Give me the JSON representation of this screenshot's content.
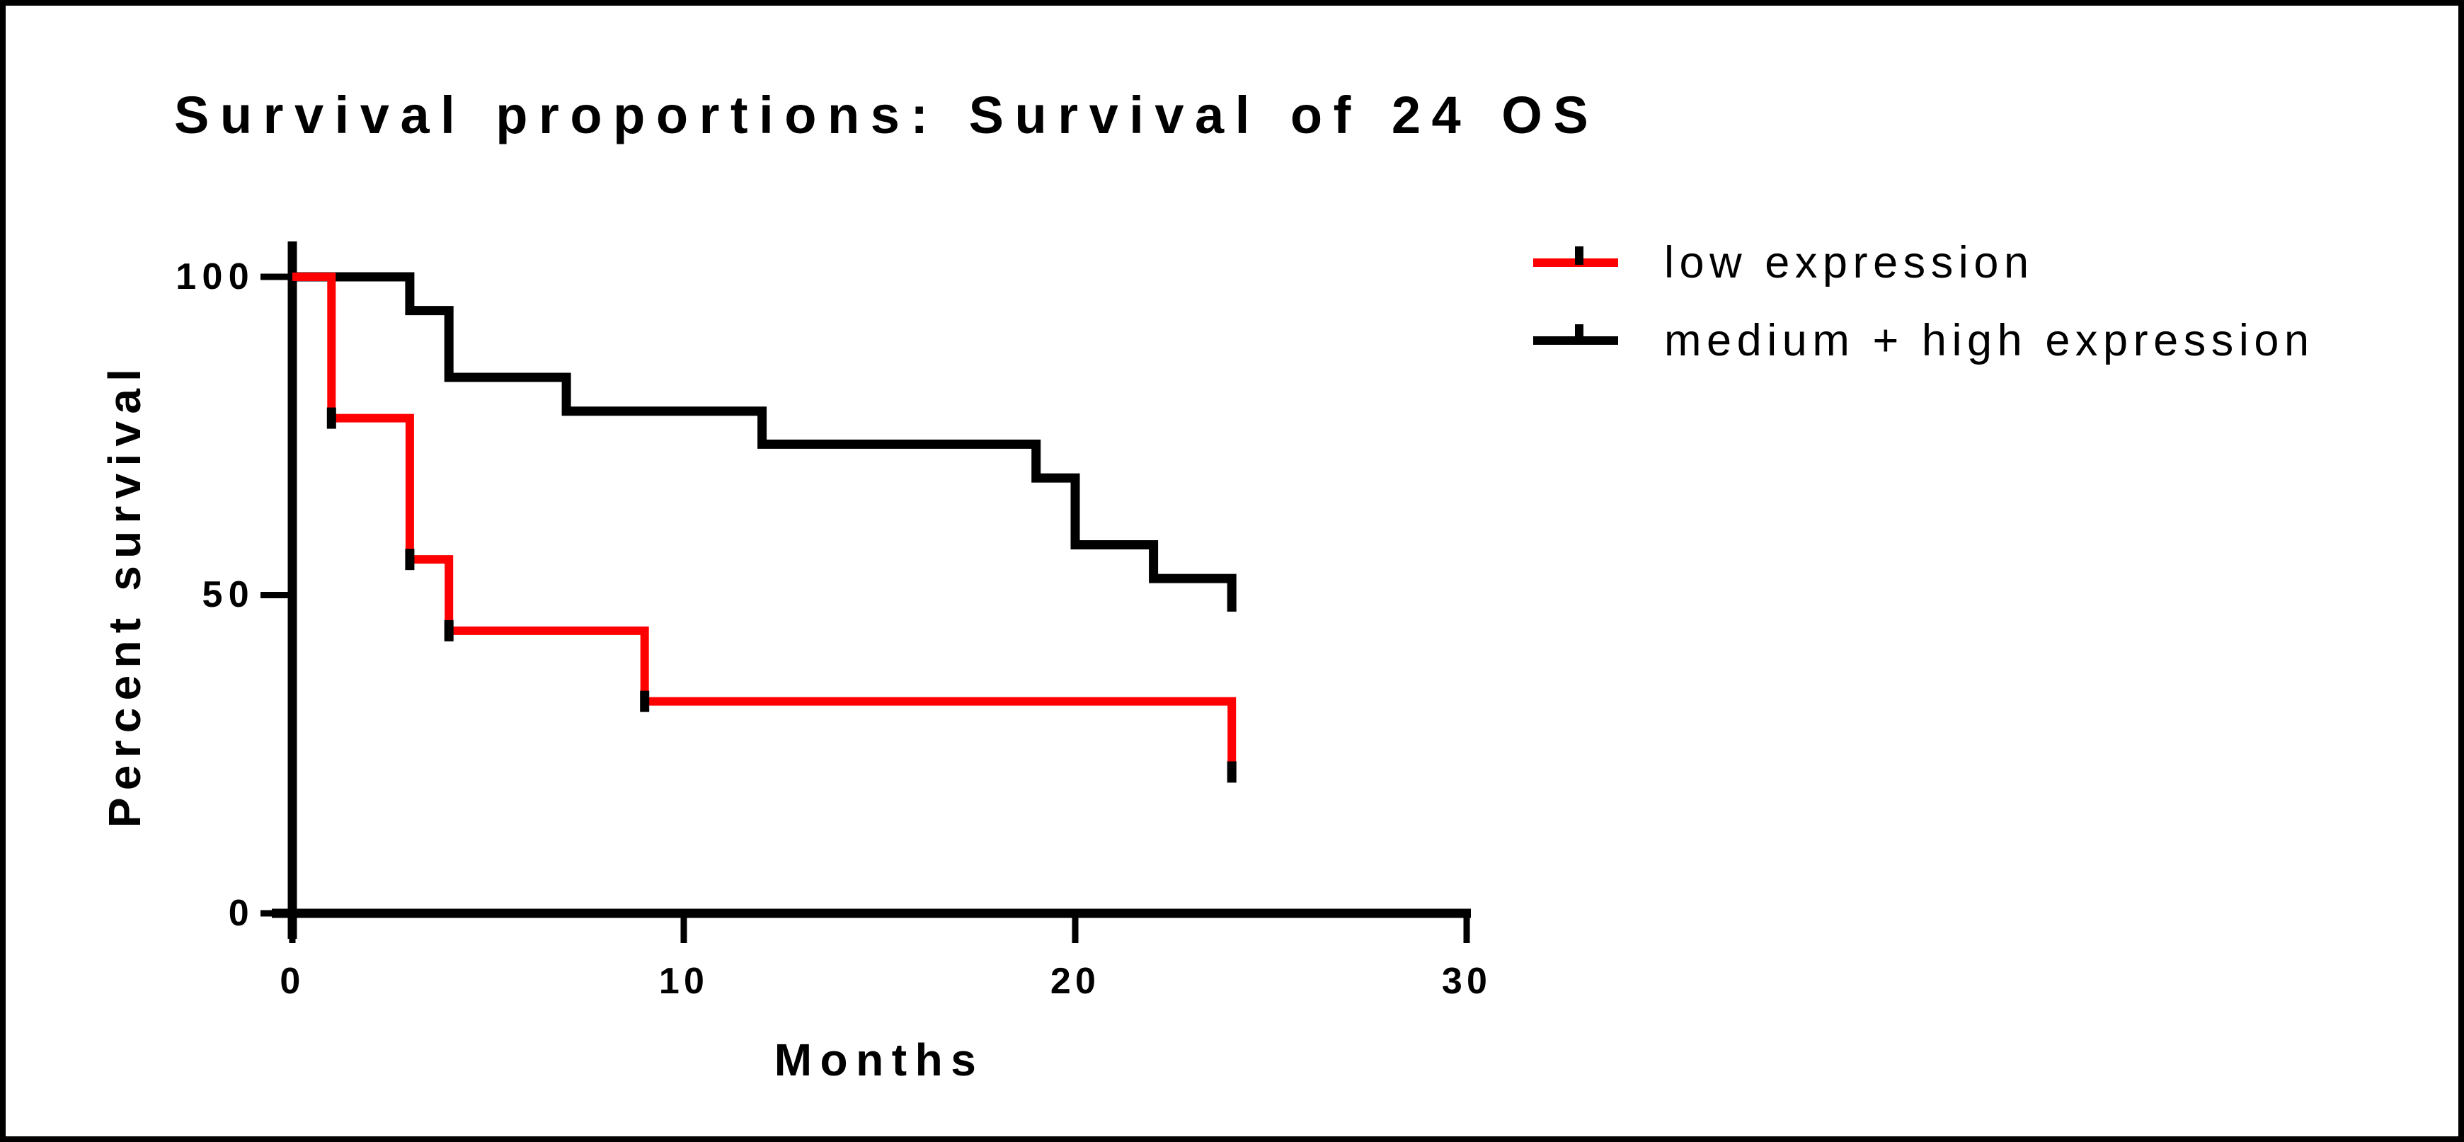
{
  "figure": {
    "title": "Survival proportions: Survival of 24 OS"
  },
  "axes": {
    "y": {
      "label": "Percent survival",
      "ticks": [
        {
          "label": "100",
          "value": 100
        },
        {
          "label": "50",
          "value": 50
        },
        {
          "label": "0",
          "value": 0
        }
      ]
    },
    "x": {
      "label": "Months",
      "ticks": [
        {
          "label": "0",
          "value": 0
        },
        {
          "label": "10",
          "value": 10
        },
        {
          "label": "20",
          "value": 20
        },
        {
          "label": "30",
          "value": 30
        }
      ]
    }
  },
  "legend": {
    "items": [
      {
        "label": "low expression",
        "color": "#ff0000"
      },
      {
        "label": "medium + high expression",
        "color": "#000000"
      }
    ]
  },
  "chart_data": {
    "type": "line",
    "subtype": "kaplan-meier-step",
    "title": "Survival proportions: Survival of 24 OS",
    "xlabel": "Months",
    "ylabel": "Percent survival",
    "xlim": [
      0,
      30
    ],
    "ylim": [
      0,
      100
    ],
    "x_ticks": [
      0,
      10,
      20,
      30
    ],
    "y_ticks": [
      100,
      50,
      0
    ],
    "grid": false,
    "legend_position": "top-right",
    "series": [
      {
        "name": "low expression",
        "color": "#ff0000",
        "stroke_width": 12,
        "points": [
          [
            0,
            100
          ],
          [
            1,
            100
          ],
          [
            1,
            77.8
          ],
          [
            3,
            77.8
          ],
          [
            3,
            55.6
          ],
          [
            4,
            55.6
          ],
          [
            4,
            44.4
          ],
          [
            9,
            44.4
          ],
          [
            9,
            33.3
          ],
          [
            24,
            33.3
          ],
          [
            24,
            22.2
          ]
        ],
        "event_marks": [
          [
            1,
            77.8
          ],
          [
            3,
            55.6
          ],
          [
            4,
            44.4
          ],
          [
            9,
            33.3
          ],
          [
            24,
            22.2
          ]
        ],
        "mark_color": "#000000"
      },
      {
        "name": "medium + high expression",
        "color": "#000000",
        "stroke_width": 13,
        "points": [
          [
            0,
            100
          ],
          [
            3,
            100
          ],
          [
            3,
            94.7
          ],
          [
            4,
            94.7
          ],
          [
            4,
            84.2
          ],
          [
            7,
            84.2
          ],
          [
            7,
            78.9
          ],
          [
            12,
            78.9
          ],
          [
            12,
            73.7
          ],
          [
            19,
            73.7
          ],
          [
            19,
            68.4
          ],
          [
            20,
            68.4
          ],
          [
            20,
            57.9
          ],
          [
            22,
            57.9
          ],
          [
            22,
            52.6
          ],
          [
            24,
            52.6
          ],
          [
            24,
            47.4
          ]
        ],
        "event_marks": [],
        "mark_color": "#000000"
      }
    ]
  }
}
